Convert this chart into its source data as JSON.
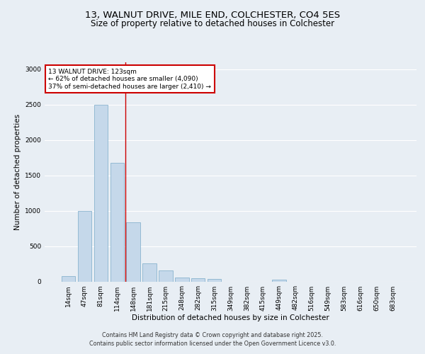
{
  "title_line1": "13, WALNUT DRIVE, MILE END, COLCHESTER, CO4 5ES",
  "title_line2": "Size of property relative to detached houses in Colchester",
  "xlabel": "Distribution of detached houses by size in Colchester",
  "ylabel": "Number of detached properties",
  "categories": [
    "14sqm",
    "47sqm",
    "81sqm",
    "114sqm",
    "148sqm",
    "181sqm",
    "215sqm",
    "248sqm",
    "282sqm",
    "315sqm",
    "349sqm",
    "382sqm",
    "415sqm",
    "449sqm",
    "482sqm",
    "516sqm",
    "549sqm",
    "583sqm",
    "616sqm",
    "650sqm",
    "683sqm"
  ],
  "values": [
    75,
    1000,
    2500,
    1680,
    840,
    260,
    155,
    60,
    50,
    40,
    0,
    0,
    0,
    30,
    0,
    0,
    0,
    0,
    0,
    0,
    0
  ],
  "bar_color": "#c5d8ea",
  "bar_edge_color": "#7aaac8",
  "bar_linewidth": 0.5,
  "red_line_x": 3.5,
  "annotation_title": "13 WALNUT DRIVE: 123sqm",
  "annotation_line1": "← 62% of detached houses are smaller (4,090)",
  "annotation_line2": "37% of semi-detached houses are larger (2,410) →",
  "annotation_box_color": "#ffffff",
  "annotation_box_edge": "#cc0000",
  "annotation_text_color": "#000000",
  "red_line_color": "#cc0000",
  "background_color": "#e8eef4",
  "plot_bg_color": "#e8eef4",
  "grid_color": "#ffffff",
  "ylim": [
    0,
    3100
  ],
  "yticks": [
    0,
    500,
    1000,
    1500,
    2000,
    2500,
    3000
  ],
  "title_fontsize": 9.5,
  "subtitle_fontsize": 8.5,
  "axis_label_fontsize": 7.5,
  "tick_fontsize": 6.5,
  "annotation_fontsize": 6.5,
  "footer_line1": "Contains HM Land Registry data © Crown copyright and database right 2025.",
  "footer_line2": "Contains public sector information licensed under the Open Government Licence v3.0.",
  "footer_fontsize": 5.8
}
